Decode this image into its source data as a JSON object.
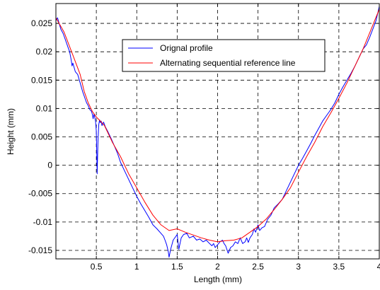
{
  "chart_data": {
    "type": "line",
    "title": "",
    "xlabel": "Length (mm)",
    "ylabel": "Height (mm)",
    "xlim": [
      0,
      4
    ],
    "ylim": [
      -0.0165,
      0.0285
    ],
    "grid": true,
    "legend_position": "top-center",
    "x_ticks": [
      0.5,
      1,
      1.5,
      2,
      2.5,
      3,
      3.5,
      4
    ],
    "x_tick_labels": [
      "0.5",
      "1",
      "1.5",
      "2",
      "2.5",
      "3",
      "3.5",
      "4"
    ],
    "y_ticks": [
      -0.015,
      -0.01,
      -0.005,
      0,
      0.005,
      0.01,
      0.015,
      0.02,
      0.025
    ],
    "y_tick_labels": [
      "-0.015",
      "-0.01",
      "-0.005",
      "0",
      "0.005",
      "0.01",
      "0.015",
      "0.02",
      "0.025"
    ],
    "series": [
      {
        "name": "Orignal profile",
        "color": "#0000ff",
        "x": [
          0,
          0.02,
          0.04,
          0.06,
          0.09,
          0.12,
          0.15,
          0.17,
          0.19,
          0.2,
          0.21,
          0.24,
          0.27,
          0.3,
          0.33,
          0.36,
          0.38,
          0.4,
          0.42,
          0.44,
          0.45,
          0.46,
          0.47,
          0.48,
          0.49,
          0.5,
          0.51,
          0.52,
          0.53,
          0.54,
          0.55,
          0.56,
          0.57,
          0.59,
          0.61,
          0.64,
          0.68,
          0.72,
          0.76,
          0.8,
          0.85,
          0.9,
          0.95,
          1.0,
          1.05,
          1.1,
          1.15,
          1.2,
          1.25,
          1.3,
          1.33,
          1.35,
          1.37,
          1.39,
          1.4,
          1.42,
          1.45,
          1.5,
          1.52,
          1.55,
          1.58,
          1.62,
          1.65,
          1.7,
          1.74,
          1.78,
          1.82,
          1.86,
          1.9,
          1.93,
          1.95,
          1.97,
          2.0,
          2.03,
          2.06,
          2.08,
          2.1,
          2.13,
          2.16,
          2.19,
          2.22,
          2.25,
          2.28,
          2.31,
          2.34,
          2.36,
          2.38,
          2.4,
          2.43,
          2.45,
          2.47,
          2.5,
          2.52,
          2.55,
          2.58,
          2.62,
          2.66,
          2.7,
          2.75,
          2.8,
          2.85,
          2.9,
          2.95,
          3.0,
          3.05,
          3.1,
          3.15,
          3.2,
          3.25,
          3.3,
          3.35,
          3.4,
          3.45,
          3.5,
          3.55,
          3.6,
          3.65,
          3.7,
          3.75,
          3.8,
          3.84,
          3.88,
          3.92,
          3.96,
          4.0
        ],
        "y": [
          0.0255,
          0.026,
          0.025,
          0.024,
          0.0232,
          0.022,
          0.0208,
          0.02,
          0.0185,
          0.0175,
          0.018,
          0.0165,
          0.016,
          0.0145,
          0.013,
          0.0118,
          0.011,
          0.0105,
          0.0098,
          0.0095,
          0.009,
          0.0082,
          0.009,
          0.0085,
          0.0078,
          0.006,
          -0.0015,
          0.004,
          0.0072,
          0.008,
          0.0075,
          0.0078,
          0.007,
          0.0076,
          0.0068,
          0.006,
          0.0048,
          0.0035,
          0.0022,
          0.0005,
          -0.001,
          -0.0025,
          -0.004,
          -0.0055,
          -0.0068,
          -0.008,
          -0.0092,
          -0.0105,
          -0.0112,
          -0.012,
          -0.0125,
          -0.0132,
          -0.014,
          -0.0152,
          -0.0162,
          -0.0148,
          -0.0132,
          -0.0122,
          -0.0148,
          -0.0128,
          -0.0122,
          -0.012,
          -0.0128,
          -0.0125,
          -0.0132,
          -0.013,
          -0.0135,
          -0.0132,
          -0.0138,
          -0.0142,
          -0.0138,
          -0.0145,
          -0.014,
          -0.0135,
          -0.0132,
          -0.0138,
          -0.0142,
          -0.0155,
          -0.0145,
          -0.0142,
          -0.0135,
          -0.0138,
          -0.0128,
          -0.0138,
          -0.0135,
          -0.0128,
          -0.0136,
          -0.0128,
          -0.0122,
          -0.0112,
          -0.0118,
          -0.0105,
          -0.0115,
          -0.011,
          -0.0108,
          -0.0095,
          -0.0088,
          -0.0075,
          -0.0068,
          -0.006,
          -0.0045,
          -0.003,
          -0.0015,
          0.0,
          0.0012,
          0.0025,
          0.0038,
          0.0052,
          0.0065,
          0.0078,
          0.0088,
          0.0098,
          0.011,
          0.0125,
          0.0138,
          0.015,
          0.0162,
          0.0175,
          0.019,
          0.0205,
          0.0212,
          0.0225,
          0.024,
          0.0255,
          0.028
        ]
      },
      {
        "name": "Alternating sequential reference line",
        "color": "#ff0000",
        "x": [
          0,
          0.1,
          0.2,
          0.3,
          0.35,
          0.4,
          0.45,
          0.5,
          0.55,
          0.6,
          0.7,
          0.8,
          0.9,
          1.0,
          1.1,
          1.2,
          1.3,
          1.4,
          1.5,
          1.6,
          1.7,
          1.8,
          1.9,
          2.0,
          2.1,
          2.2,
          2.3,
          2.4,
          2.5,
          2.6,
          2.7,
          2.8,
          2.9,
          3.0,
          3.1,
          3.2,
          3.3,
          3.4,
          3.5,
          3.6,
          3.7,
          3.8,
          3.9,
          4.0
        ],
        "y": [
          0.026,
          0.0235,
          0.0198,
          0.016,
          0.013,
          0.011,
          0.0095,
          0.0085,
          0.0078,
          0.007,
          0.004,
          0.0015,
          -0.0015,
          -0.004,
          -0.0065,
          -0.0088,
          -0.0105,
          -0.0115,
          -0.0112,
          -0.0118,
          -0.0123,
          -0.0128,
          -0.0132,
          -0.0135,
          -0.0133,
          -0.0132,
          -0.0128,
          -0.0118,
          -0.0108,
          -0.0095,
          -0.0078,
          -0.006,
          -0.004,
          -0.0012,
          0.0015,
          0.004,
          0.0068,
          0.0092,
          0.0118,
          0.0145,
          0.0175,
          0.0205,
          0.024,
          0.0275
        ]
      }
    ]
  }
}
